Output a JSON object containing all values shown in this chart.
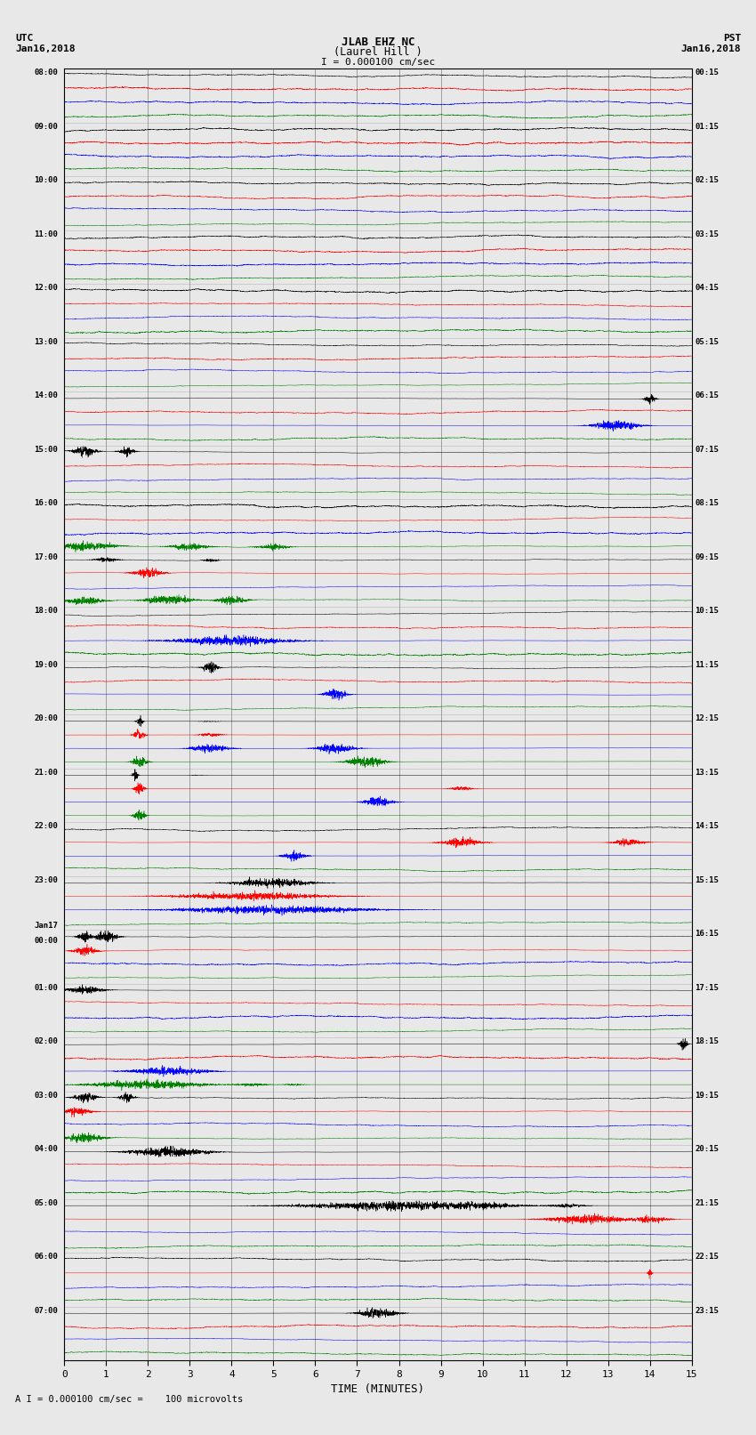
{
  "title_line1": "JLAB EHZ NC",
  "title_line2": "(Laurel Hill )",
  "scale_label": "I = 0.000100 cm/sec",
  "left_header": "UTC",
  "left_subheader": "Jan16,2018",
  "right_header": "PST",
  "right_subheader": "Jan16,2018",
  "xlabel": "TIME (MINUTES)",
  "footer": "A I = 0.000100 cm/sec =    100 microvolts",
  "utc_labels": [
    "08:00",
    "09:00",
    "10:00",
    "11:00",
    "12:00",
    "13:00",
    "14:00",
    "15:00",
    "16:00",
    "17:00",
    "18:00",
    "19:00",
    "20:00",
    "21:00",
    "22:00",
    "23:00",
    "Jan17\n00:00",
    "01:00",
    "02:00",
    "03:00",
    "04:00",
    "05:00",
    "06:00",
    "07:00"
  ],
  "pst_labels": [
    "00:15",
    "01:15",
    "02:15",
    "03:15",
    "04:15",
    "05:15",
    "06:15",
    "07:15",
    "08:15",
    "09:15",
    "10:15",
    "11:15",
    "12:15",
    "13:15",
    "14:15",
    "15:15",
    "16:15",
    "17:15",
    "18:15",
    "19:15",
    "20:15",
    "21:15",
    "22:15",
    "23:15"
  ],
  "n_rows": 24,
  "n_traces_per_row": 4,
  "trace_colors": [
    "black",
    "red",
    "blue",
    "green"
  ],
  "bg_color": "#e8e8e8",
  "trace_amplitude": 0.012,
  "figsize": [
    8.5,
    16.13
  ],
  "dpi": 100,
  "xmin": 0,
  "xmax": 15,
  "xticks": [
    0,
    1,
    2,
    3,
    4,
    5,
    6,
    7,
    8,
    9,
    10,
    11,
    12,
    13,
    14,
    15
  ]
}
